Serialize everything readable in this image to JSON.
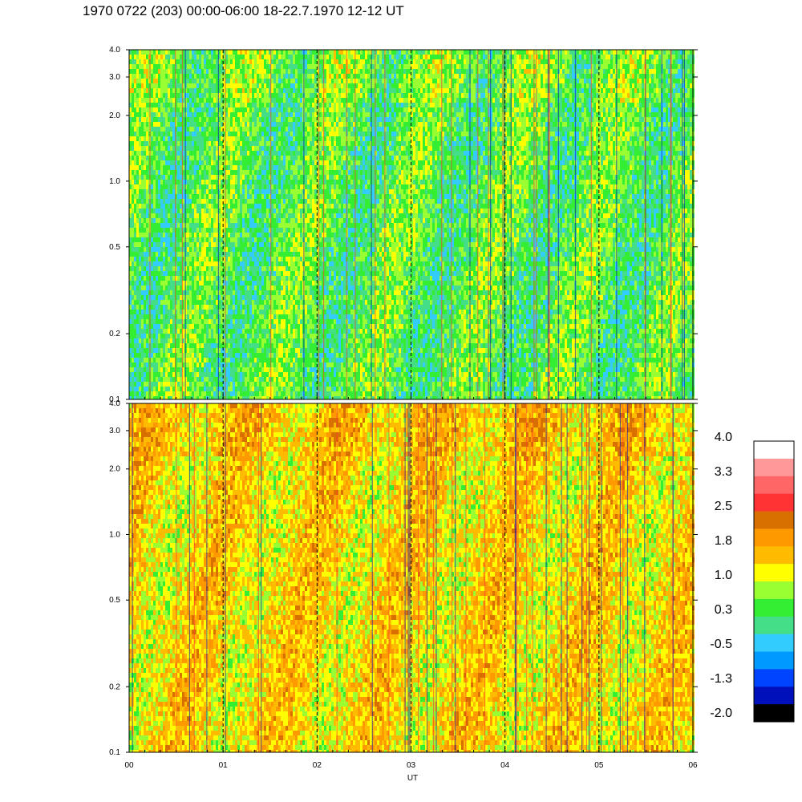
{
  "title": "1970 0722 (203) 00:00-06:00 18-22.7.1970  12-12 UT",
  "chart_data": [
    {
      "type": "heatmap",
      "panel": "upper",
      "x_ticks": [
        "00",
        "01",
        "02",
        "03",
        "04",
        "05",
        "06"
      ],
      "y_ticks": [
        "4.0",
        "3.0",
        "2.0",
        "1.0",
        "0.5",
        "0.2",
        "0.1"
      ],
      "y_tick_values": [
        4.0,
        3.0,
        2.0,
        1.0,
        0.5,
        0.2,
        0.1
      ],
      "xlim": [
        0,
        6
      ],
      "ylim": [
        0.1,
        4.0
      ],
      "y_scale": "log",
      "base_value": 0.4,
      "vertical_dashed_lines_at": [
        1,
        2,
        3,
        4,
        5
      ]
    },
    {
      "type": "heatmap",
      "panel": "lower",
      "x_ticks": [
        "00",
        "01",
        "02",
        "03",
        "04",
        "05",
        "06"
      ],
      "x_label": "UT",
      "y_ticks": [
        "4.0",
        "3.0",
        "2.0",
        "1.0",
        "0.5",
        "0.2",
        "0.1"
      ],
      "y_tick_values": [
        4.0,
        3.0,
        2.0,
        1.0,
        0.5,
        0.2,
        0.1
      ],
      "xlim": [
        0,
        6
      ],
      "ylim": [
        0.1,
        4.0
      ],
      "y_scale": "log",
      "base_value": 1.4,
      "vertical_dashed_lines_at": [
        1,
        2,
        3,
        4,
        5
      ]
    }
  ],
  "colorbar": {
    "labels": [
      "4.0",
      "3.3",
      "2.5",
      "1.8",
      "1.0",
      "0.3",
      "-0.5",
      "-1.3",
      "-2.0"
    ],
    "colors_top_to_bottom": [
      "#ffffff",
      "#ff9999",
      "#ff6666",
      "#ff3333",
      "#d87000",
      "#ff9900",
      "#ffbb00",
      "#ffff00",
      "#99ff33",
      "#33ee33",
      "#44dd88",
      "#33ccff",
      "#0099ff",
      "#0044ff",
      "#0011bb",
      "#000000"
    ]
  }
}
